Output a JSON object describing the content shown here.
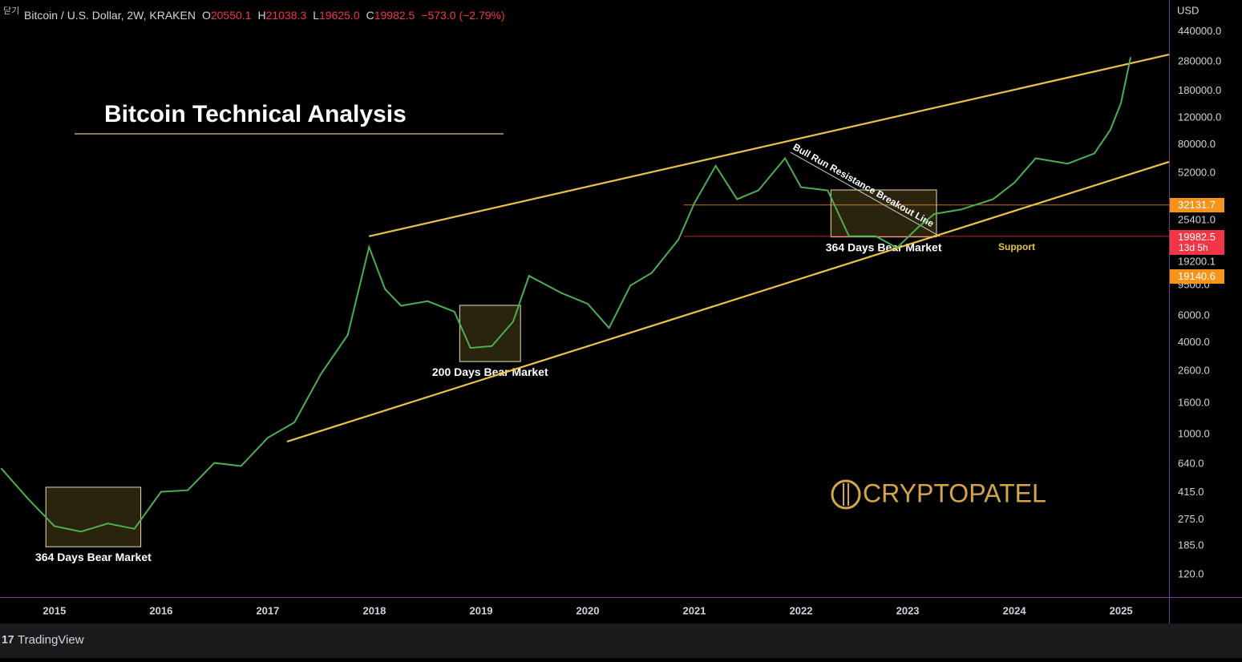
{
  "top_overlay": "닫기",
  "header": {
    "symbol": "Bitcoin / U.S. Dollar, 2W, KRAKEN",
    "ohlc": [
      {
        "label": "O",
        "value": "20550.1"
      },
      {
        "label": "H",
        "value": "21038.3"
      },
      {
        "label": "L",
        "value": "19625.0"
      },
      {
        "label": "C",
        "value": "19982.5"
      }
    ],
    "change": "−573.0 (−2.79%)"
  },
  "footer": {
    "brand": "TradingView"
  },
  "chart_data": {
    "type": "line",
    "title": "Bitcoin Technical Analysis",
    "watermark": "CRYPTOPATEL",
    "y_unit": "USD",
    "log_scale": true,
    "color": "#4caf50",
    "xlim": [
      2014.49,
      2025.45
    ],
    "ylim": [
      85.5,
      712000
    ],
    "xticks": [
      2015,
      2016,
      2017,
      2018,
      2019,
      2020,
      2021,
      2022,
      2023,
      2024,
      2025
    ],
    "yticks": [
      {
        "value": 440000,
        "label": "440000.0"
      },
      {
        "value": 280000,
        "label": "280000.0"
      },
      {
        "value": 180000,
        "label": "180000.0"
      },
      {
        "value": 120000,
        "label": "120000.0"
      },
      {
        "value": 80000,
        "label": "80000.0"
      },
      {
        "value": 52000,
        "label": "52000.0"
      },
      {
        "value": 25401,
        "label": "25401.0"
      },
      {
        "value": 19200.1,
        "label": "19200.1"
      },
      {
        "value": 9500,
        "label": "9500.0"
      },
      {
        "value": 6000,
        "label": "6000.0"
      },
      {
        "value": 4000,
        "label": "4000.0"
      },
      {
        "value": 2600,
        "label": "2600.0"
      },
      {
        "value": 1600,
        "label": "1600.0"
      },
      {
        "value": 1000,
        "label": "1000.0"
      },
      {
        "value": 640,
        "label": "640.0"
      },
      {
        "value": 415,
        "label": "415.0"
      },
      {
        "value": 275,
        "label": "275.0"
      },
      {
        "value": 185,
        "label": "185.0"
      },
      {
        "value": 120,
        "label": "120.0"
      }
    ],
    "x": [
      2014.5,
      2014.75,
      2015.0,
      2015.25,
      2015.5,
      2015.75,
      2016.0,
      2016.25,
      2016.5,
      2016.75,
      2017.0,
      2017.25,
      2017.5,
      2017.75,
      2017.95,
      2018.1,
      2018.25,
      2018.5,
      2018.75,
      2018.9,
      2019.1,
      2019.3,
      2019.45,
      2019.75,
      2020.0,
      2020.2,
      2020.4,
      2020.6,
      2020.85,
      2021.0,
      2021.2,
      2021.4,
      2021.6,
      2021.85,
      2022.0,
      2022.25,
      2022.45,
      2022.7,
      2022.9,
      2023.1,
      2023.25,
      2023.5,
      2023.8,
      2024.0,
      2024.2,
      2024.5,
      2024.75,
      2024.9,
      2025.0,
      2025.09
    ],
    "values": [
      600,
      380,
      250,
      230,
      260,
      240,
      420,
      430,
      650,
      620,
      950,
      1200,
      2500,
      4500,
      17000,
      9000,
      7000,
      7500,
      6400,
      3700,
      3800,
      5500,
      11000,
      8500,
      7200,
      5000,
      9500,
      11500,
      19000,
      33000,
      58000,
      35000,
      40000,
      65000,
      42000,
      40000,
      20000,
      20000,
      16800,
      23000,
      28000,
      30000,
      35000,
      45000,
      65000,
      60000,
      70000,
      100000,
      150000,
      300000
    ],
    "trendlines": [
      {
        "x": [
          2017.95,
          2025.45
        ],
        "y": [
          20000,
          312000
        ],
        "color": "#e8c547"
      },
      {
        "x": [
          2017.18,
          2025.45
        ],
        "y": [
          897,
          61600
        ],
        "color": "#e8c547"
      },
      {
        "x": [
          2021.9,
          2023.3
        ],
        "y": [
          71300,
          20000
        ],
        "color": "#cfcfcf"
      }
    ],
    "trendline_label": "Bull Run Resistance Breakout Line",
    "boxes": [
      {
        "label": "364 Days Bear Market",
        "x": [
          2014.92,
          2015.81
        ],
        "y": [
          183,
          450
        ]
      },
      {
        "label": "200 Days Bear Market",
        "x": [
          2018.8,
          2019.37
        ],
        "y": [
          3010,
          7040
        ]
      },
      {
        "label": "364 Days Bear Market",
        "x": [
          2022.28,
          2023.27
        ],
        "y": [
          19800,
          40300
        ]
      }
    ],
    "support_label": "Support",
    "price_labels": [
      {
        "value": 32131.7,
        "label": "32131.7",
        "color": "#f7931a",
        "from": 2020.9
      },
      {
        "value": 19982.5,
        "label": "19982.5",
        "sub": "13d 5h",
        "color": "#f23645",
        "from": 2020.9
      },
      {
        "value": 19140.6,
        "label": "19140.6",
        "color": "#f7931a"
      }
    ]
  }
}
